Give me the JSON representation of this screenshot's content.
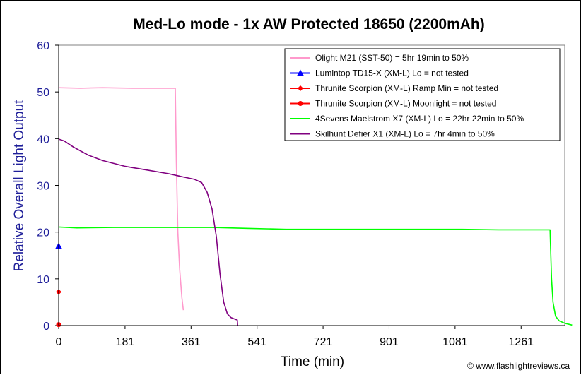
{
  "chart_data": {
    "type": "line",
    "title": "Med-Lo mode - 1x AW Protected 18650 (2200mAh)",
    "xlabel": "Time (min)",
    "ylabel": "Relative Overall Light Output",
    "xlim": [
      0,
      1380
    ],
    "ylim": [
      0,
      60
    ],
    "xticks": [
      0,
      181,
      361,
      541,
      721,
      901,
      1081,
      1261
    ],
    "yticks": [
      0,
      10,
      20,
      30,
      40,
      50,
      60
    ],
    "legend_position": "top-right",
    "grid": false,
    "colors": {
      "ytick": "#1f1f99",
      "ylabel": "#1f1f99",
      "plot_bg": "#ffffff"
    },
    "series": [
      {
        "name": "Olight M21 (SST-50) = 5hr 19min to 50%",
        "color": "#ff99cc",
        "marker": "none",
        "points": [
          [
            0,
            50.9
          ],
          [
            60,
            50.8
          ],
          [
            120,
            50.9
          ],
          [
            200,
            50.8
          ],
          [
            260,
            50.8
          ],
          [
            318,
            50.8
          ],
          [
            321,
            35
          ],
          [
            325,
            20
          ],
          [
            330,
            12
          ],
          [
            336,
            6
          ],
          [
            340,
            3.3
          ]
        ]
      },
      {
        "name": "Lumintop TD15-X (XM-L) Lo = not tested",
        "color": "#0000ff",
        "marker": "triangle",
        "points": [
          [
            0,
            17
          ]
        ]
      },
      {
        "name": "Thrunite Scorpion (XM-L) Ramp Min = not tested",
        "color": "#ff0000",
        "marker": "diamond",
        "points": [
          [
            0,
            7.2
          ]
        ]
      },
      {
        "name": "Thrunite Scorpion (XM-L) Moonlight = not tested",
        "color": "#ff0000",
        "marker": "circle",
        "points": [
          [
            0,
            0.2
          ]
        ]
      },
      {
        "name": "4Sevens Maelstrom X7 (XM-L) Lo = 22hr 22min to 50%",
        "color": "#00ff00",
        "marker": "none",
        "points": [
          [
            0,
            21.1
          ],
          [
            50,
            20.9
          ],
          [
            150,
            21.0
          ],
          [
            300,
            21.0
          ],
          [
            420,
            21.0
          ],
          [
            520,
            20.8
          ],
          [
            620,
            20.6
          ],
          [
            760,
            20.6
          ],
          [
            900,
            20.6
          ],
          [
            1000,
            20.6
          ],
          [
            1100,
            20.6
          ],
          [
            1200,
            20.5
          ],
          [
            1340,
            20.5
          ],
          [
            1344,
            10
          ],
          [
            1348,
            5
          ],
          [
            1355,
            2
          ],
          [
            1365,
            1
          ],
          [
            1380,
            0.5
          ],
          [
            1400,
            0.1
          ]
        ]
      },
      {
        "name": "Skilhunt Defier X1 (XM-L) Lo = 7hr 4min to 50%",
        "color": "#800080",
        "marker": "none",
        "points": [
          [
            0,
            39.9
          ],
          [
            15,
            39.5
          ],
          [
            40,
            38.2
          ],
          [
            80,
            36.5
          ],
          [
            120,
            35.3
          ],
          [
            180,
            34.1
          ],
          [
            240,
            33.3
          ],
          [
            300,
            32.5
          ],
          [
            340,
            31.8
          ],
          [
            370,
            31.3
          ],
          [
            390,
            30.6
          ],
          [
            405,
            28.5
          ],
          [
            418,
            25
          ],
          [
            430,
            19
          ],
          [
            440,
            11
          ],
          [
            450,
            5
          ],
          [
            460,
            2.5
          ],
          [
            470,
            1.7
          ],
          [
            480,
            1.4
          ],
          [
            487,
            1.2
          ],
          [
            488,
            0
          ]
        ]
      }
    ],
    "credit": "© www.flashlightreviews.ca"
  }
}
